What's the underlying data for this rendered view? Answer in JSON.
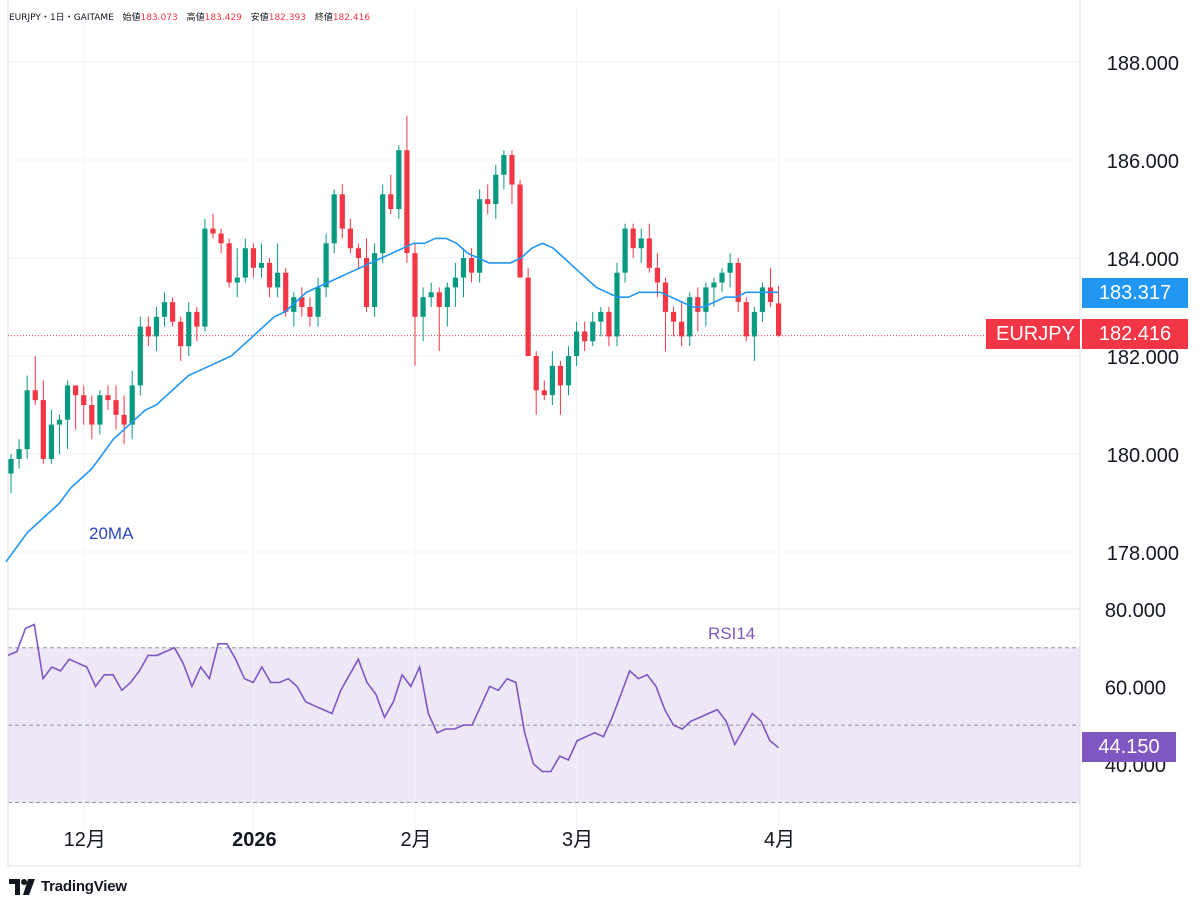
{
  "header": {
    "symbol": "EURJPY",
    "interval": "1日",
    "source": "GAITAME",
    "sep": "・",
    "open_label": "始値",
    "open": "183.073",
    "high_label": "高値",
    "high": "183.429",
    "low_label": "安値",
    "low": "182.393",
    "close_label": "終値",
    "close": "182.416"
  },
  "price_tags": {
    "ma_value": "183.317",
    "symbol_label": "EURJPY",
    "last_value": "182.416",
    "rsi_value": "44.150"
  },
  "colors": {
    "up": "#089981",
    "down": "#f23645",
    "ma": "#2196f3",
    "ma_label": "#2c48b8",
    "rsi": "#7e57c2",
    "rsi_band": "#ede7f6"
  },
  "logo_text": "TradingView",
  "chart_data": [
    {
      "type": "candlestick",
      "ylim": [
        176.8,
        189.2
      ],
      "y_ticks": [
        "188.000",
        "186.000",
        "184.000",
        "182.000",
        "180.000",
        "178.000"
      ],
      "y_tick_values": [
        188,
        186,
        184,
        182,
        180,
        178
      ],
      "x_ticks": [
        {
          "label": "12月",
          "index": 9
        },
        {
          "label": "2026",
          "index": 30
        },
        {
          "label": "2月",
          "index": 50
        },
        {
          "label": "3月",
          "index": 70
        },
        {
          "label": "4月",
          "index": 95
        }
      ],
      "last_close": 182.416,
      "overlay_label": "20MA",
      "ohlc": [
        [
          179.6,
          180.0,
          179.2,
          179.9
        ],
        [
          179.9,
          180.3,
          179.7,
          180.1
        ],
        [
          180.1,
          181.6,
          179.9,
          181.3
        ],
        [
          181.3,
          182.0,
          181.0,
          181.1
        ],
        [
          181.1,
          181.5,
          179.8,
          179.9
        ],
        [
          179.9,
          180.9,
          179.8,
          180.6
        ],
        [
          180.6,
          180.8,
          180.0,
          180.7
        ],
        [
          180.7,
          181.5,
          180.1,
          181.4
        ],
        [
          181.4,
          181.4,
          180.5,
          181.2
        ],
        [
          181.2,
          181.4,
          180.6,
          181.0
        ],
        [
          181.0,
          181.2,
          180.3,
          180.6
        ],
        [
          180.6,
          181.3,
          180.4,
          181.2
        ],
        [
          181.2,
          181.4,
          180.9,
          181.1
        ],
        [
          181.1,
          181.4,
          180.5,
          180.8
        ],
        [
          180.8,
          181.2,
          180.2,
          180.6
        ],
        [
          180.6,
          181.7,
          180.3,
          181.4
        ],
        [
          181.4,
          182.8,
          181.2,
          182.6
        ],
        [
          182.6,
          182.8,
          182.2,
          182.4
        ],
        [
          182.4,
          183.0,
          182.1,
          182.8
        ],
        [
          182.8,
          183.3,
          182.6,
          183.1
        ],
        [
          183.1,
          183.2,
          182.6,
          182.7
        ],
        [
          182.7,
          182.8,
          181.9,
          182.2
        ],
        [
          182.2,
          183.1,
          182.0,
          182.9
        ],
        [
          182.9,
          183.0,
          182.3,
          182.6
        ],
        [
          182.6,
          184.8,
          182.5,
          184.6
        ],
        [
          184.6,
          184.9,
          184.4,
          184.5
        ],
        [
          184.5,
          184.6,
          184.1,
          184.3
        ],
        [
          184.3,
          184.4,
          183.4,
          183.5
        ],
        [
          183.5,
          184.2,
          183.2,
          183.6
        ],
        [
          183.6,
          184.4,
          183.5,
          184.2
        ],
        [
          184.2,
          184.3,
          183.6,
          183.8
        ],
        [
          183.8,
          184.3,
          183.6,
          183.9
        ],
        [
          183.9,
          184.0,
          183.2,
          183.4
        ],
        [
          183.4,
          184.3,
          183.2,
          183.7
        ],
        [
          183.7,
          183.8,
          182.8,
          182.9
        ],
        [
          182.9,
          183.3,
          182.6,
          183.2
        ],
        [
          183.2,
          183.4,
          182.8,
          183.0
        ],
        [
          183.0,
          183.2,
          182.6,
          182.8
        ],
        [
          182.8,
          183.6,
          182.6,
          183.4
        ],
        [
          183.4,
          184.5,
          183.2,
          184.3
        ],
        [
          184.3,
          185.4,
          184.1,
          185.3
        ],
        [
          185.3,
          185.5,
          184.4,
          184.6
        ],
        [
          184.6,
          184.8,
          184.1,
          184.2
        ],
        [
          184.2,
          184.3,
          183.8,
          184.0
        ],
        [
          184.0,
          184.4,
          182.9,
          183.0
        ],
        [
          183.0,
          184.3,
          182.8,
          184.1
        ],
        [
          184.1,
          185.5,
          183.9,
          185.3
        ],
        [
          185.3,
          185.7,
          184.9,
          185.0
        ],
        [
          185.0,
          186.3,
          184.8,
          186.2
        ],
        [
          186.2,
          186.9,
          183.9,
          184.1
        ],
        [
          184.1,
          184.3,
          181.8,
          182.8
        ],
        [
          182.8,
          183.4,
          182.3,
          183.2
        ],
        [
          183.2,
          183.5,
          183.0,
          183.3
        ],
        [
          183.3,
          183.4,
          182.1,
          183.0
        ],
        [
          183.0,
          183.5,
          182.6,
          183.4
        ],
        [
          183.4,
          183.9,
          183.0,
          183.6
        ],
        [
          183.6,
          184.2,
          183.2,
          184.0
        ],
        [
          184.0,
          184.2,
          183.5,
          183.7
        ],
        [
          183.7,
          185.4,
          183.5,
          185.2
        ],
        [
          185.2,
          185.5,
          184.9,
          185.1
        ],
        [
          185.1,
          185.9,
          184.8,
          185.7
        ],
        [
          185.7,
          186.2,
          185.4,
          186.1
        ],
        [
          186.1,
          186.2,
          185.1,
          185.5
        ],
        [
          185.5,
          185.6,
          183.6,
          183.6
        ],
        [
          183.6,
          183.8,
          182.0,
          182.0
        ],
        [
          182.0,
          182.1,
          180.8,
          181.3
        ],
        [
          181.3,
          181.5,
          181.1,
          181.2
        ],
        [
          181.2,
          182.1,
          181.0,
          181.8
        ],
        [
          181.8,
          181.9,
          180.8,
          181.4
        ],
        [
          181.4,
          182.2,
          181.2,
          182.0
        ],
        [
          182.0,
          182.7,
          181.8,
          182.5
        ],
        [
          182.5,
          182.7,
          182.1,
          182.3
        ],
        [
          182.3,
          182.9,
          182.2,
          182.7
        ],
        [
          182.7,
          183.0,
          182.4,
          182.9
        ],
        [
          182.9,
          183.0,
          182.2,
          182.4
        ],
        [
          182.4,
          183.9,
          182.2,
          183.7
        ],
        [
          183.7,
          184.7,
          183.5,
          184.6
        ],
        [
          184.6,
          184.7,
          184.0,
          184.2
        ],
        [
          184.2,
          184.6,
          183.9,
          184.4
        ],
        [
          184.4,
          184.7,
          183.7,
          183.8
        ],
        [
          183.8,
          184.1,
          183.2,
          183.5
        ],
        [
          183.5,
          183.6,
          182.1,
          182.9
        ],
        [
          182.9,
          183.0,
          182.4,
          182.7
        ],
        [
          182.7,
          183.1,
          182.2,
          182.4
        ],
        [
          182.4,
          183.3,
          182.2,
          183.2
        ],
        [
          183.2,
          183.4,
          182.5,
          182.9
        ],
        [
          182.9,
          183.5,
          182.6,
          183.4
        ],
        [
          183.4,
          183.6,
          183.0,
          183.5
        ],
        [
          183.5,
          183.8,
          183.3,
          183.7
        ],
        [
          183.7,
          184.1,
          183.4,
          183.9
        ],
        [
          183.9,
          184.0,
          182.9,
          183.1
        ],
        [
          183.1,
          183.2,
          182.3,
          182.4
        ],
        [
          182.4,
          183.0,
          181.9,
          182.9
        ],
        [
          182.9,
          183.5,
          182.7,
          183.4
        ],
        [
          183.4,
          183.8,
          183.0,
          183.1
        ],
        [
          183.073,
          183.429,
          182.393,
          182.416
        ]
      ],
      "ma20": [
        177.8,
        178.1,
        178.4,
        178.6,
        178.8,
        179.0,
        179.3,
        179.5,
        179.7,
        180.0,
        180.3,
        180.5,
        180.7,
        180.9,
        181.0,
        181.2,
        181.4,
        181.6,
        181.7,
        181.8,
        181.9,
        182.0,
        182.2,
        182.4,
        182.6,
        182.8,
        182.9,
        183.1,
        183.3,
        183.4,
        183.5,
        183.6,
        183.7,
        183.8,
        183.9,
        184.0,
        184.1,
        184.2,
        184.3,
        184.3,
        184.4,
        184.4,
        184.3,
        184.1,
        184.0,
        183.9,
        183.9,
        183.9,
        184.0,
        184.2,
        184.3,
        184.2,
        184.0,
        183.8,
        183.6,
        183.4,
        183.3,
        183.2,
        183.2,
        183.3,
        183.3,
        183.3,
        183.2,
        183.1,
        183.0,
        183.0,
        183.1,
        183.2,
        183.2,
        183.3,
        183.3,
        183.3,
        183.3
      ]
    },
    {
      "type": "line",
      "series_name": "RSI14",
      "ylim": [
        28,
        82
      ],
      "y_ticks": [
        "80.000",
        "60.000",
        "40.000"
      ],
      "y_tick_values": [
        80,
        60,
        40
      ],
      "band": [
        30,
        70
      ],
      "midline": 50,
      "last_value": 44.15,
      "values": [
        68,
        69,
        75,
        76,
        62,
        65,
        64,
        67,
        66,
        65,
        60,
        63,
        63,
        59,
        61,
        64,
        68,
        68,
        69,
        70,
        66,
        60,
        65,
        62,
        71,
        71,
        67,
        62,
        61,
        65,
        61,
        61,
        62,
        60,
        56,
        55,
        54,
        53,
        59,
        63,
        67,
        61,
        58,
        52,
        56,
        63,
        60,
        65,
        53,
        48,
        49,
        49,
        50,
        50,
        55,
        60,
        59,
        62,
        61,
        48,
        40,
        38,
        38,
        42,
        41,
        46,
        47,
        48,
        47,
        52,
        58,
        64,
        62,
        63,
        60,
        54,
        50,
        49,
        51,
        52,
        53,
        54,
        51,
        45,
        49,
        53,
        51,
        46,
        44.15
      ]
    }
  ]
}
